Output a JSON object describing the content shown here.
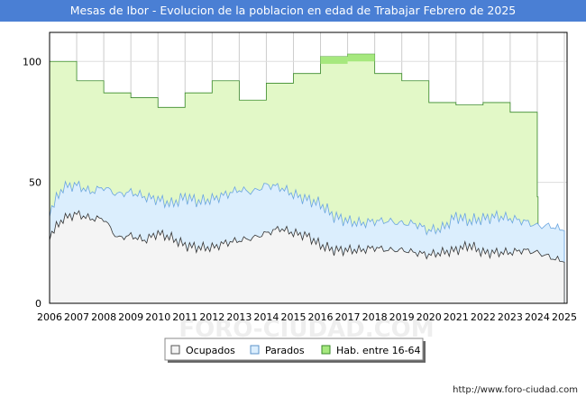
{
  "header": {
    "title": "Mesas de Ibor - Evolucion de la poblacion en edad de Trabajar Febrero de 2025"
  },
  "footer": {
    "url": "http://www.foro-ciudad.com"
  },
  "watermark": "FORO-CIUDAD.COM",
  "colors": {
    "header_bg": "#4a7fd4",
    "hab_fill": "#e2f8c7",
    "hab_line": "#3a8a2a",
    "hab_top_fill": "#a6e87e",
    "parados_fill": "#dbeefd",
    "parados_line": "#6aa5e0",
    "ocupados_fill": "#f4f4f4",
    "ocupados_line": "#333333",
    "grid": "#cccccc"
  },
  "chart_data": {
    "type": "area",
    "title": "Mesas de Ibor - Evolucion de la poblacion en edad de Trabajar Febrero de 2025",
    "xlabel": "",
    "ylabel": "",
    "xlim": [
      2006,
      2025.1
    ],
    "ylim": [
      0,
      112
    ],
    "x_ticks": [
      "2006",
      "2007",
      "2008",
      "2009",
      "2010",
      "2011",
      "2012",
      "2013",
      "2014",
      "2015",
      "2016",
      "2017",
      "2018",
      "2019",
      "2020",
      "2021",
      "2022",
      "2023",
      "2024",
      "2025"
    ],
    "y_ticks": [
      "0",
      "50",
      "100"
    ],
    "legend": [
      "Ocupados",
      "Parados",
      "Hab. entre 16-64"
    ],
    "legend_position": "bottom-center",
    "series": [
      {
        "name": "Hab. entre 16-64",
        "step": true,
        "x": [
          2006,
          2007,
          2008,
          2009,
          2010,
          2011,
          2012,
          2013,
          2014,
          2015,
          2016,
          2017,
          2018,
          2019,
          2020,
          2021,
          2022,
          2023,
          2024
        ],
        "values": [
          100,
          92,
          87,
          85,
          81,
          87,
          92,
          84,
          91,
          95,
          102,
          103,
          95,
          92,
          83,
          82,
          83,
          79,
          44
        ]
      },
      {
        "name": "Parados",
        "x": [
          2006,
          2006.5,
          2007,
          2007.5,
          2008,
          2008.5,
          2009,
          2009.5,
          2010,
          2010.5,
          2011,
          2011.5,
          2012,
          2012.5,
          2013,
          2013.5,
          2014,
          2014.5,
          2015,
          2015.5,
          2016,
          2016.5,
          2017,
          2017.5,
          2018,
          2018.5,
          2019,
          2019.5,
          2020,
          2020.5,
          2021,
          2021.5,
          2022,
          2022.5,
          2023,
          2023.5,
          2024,
          2024.5,
          2025
        ],
        "values": [
          38,
          48,
          49,
          46,
          48,
          45,
          46,
          44,
          43,
          41,
          44,
          42,
          43,
          45,
          47,
          46,
          49,
          48,
          45,
          43,
          41,
          36,
          34,
          33,
          34,
          34,
          33,
          33,
          30,
          31,
          36,
          34,
          35,
          36,
          35,
          34,
          32,
          32,
          30
        ]
      },
      {
        "name": "Ocupados",
        "x": [
          2006,
          2006.5,
          2007,
          2007.5,
          2008,
          2008.5,
          2009,
          2009.5,
          2010,
          2010.5,
          2011,
          2011.5,
          2012,
          2012.5,
          2013,
          2013.5,
          2014,
          2014.5,
          2015,
          2015.5,
          2016,
          2016.5,
          2017,
          2017.5,
          2018,
          2018.5,
          2019,
          2019.5,
          2020,
          2020.5,
          2021,
          2021.5,
          2022,
          2022.5,
          2023,
          2023.5,
          2024,
          2024.5,
          2025
        ],
        "values": [
          28,
          35,
          37,
          35,
          35,
          27,
          28,
          26,
          29,
          27,
          24,
          23,
          23,
          25,
          26,
          27,
          29,
          31,
          29,
          28,
          24,
          22,
          22,
          22,
          23,
          22,
          22,
          21,
          20,
          21,
          22,
          24,
          21,
          21,
          21,
          22,
          21,
          19,
          17
        ]
      }
    ]
  }
}
